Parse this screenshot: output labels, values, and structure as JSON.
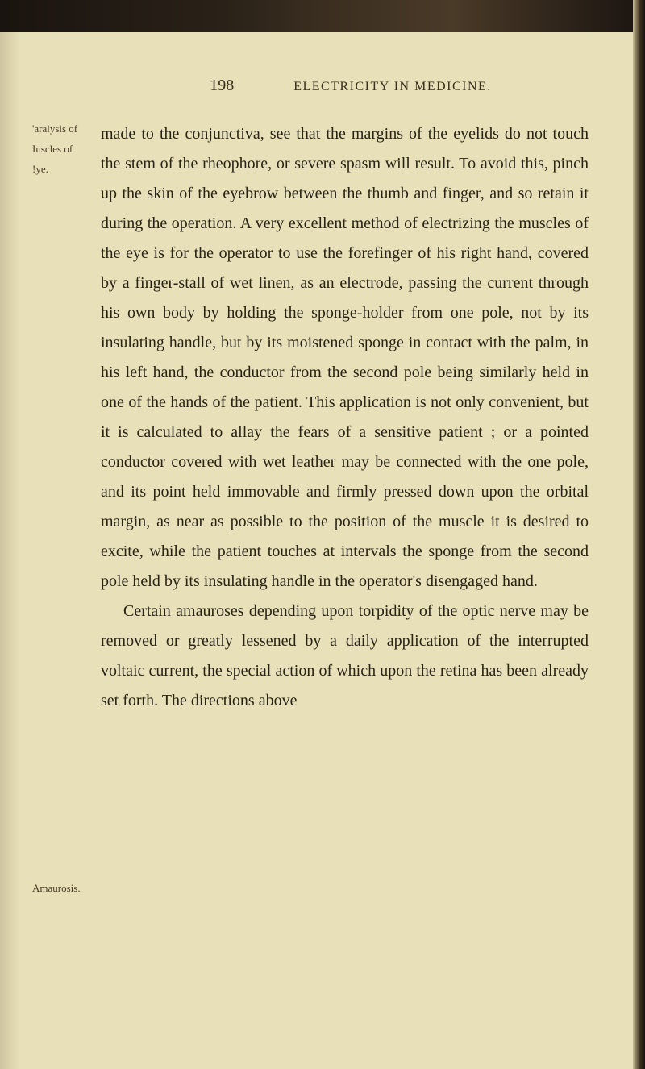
{
  "page": {
    "number": "198",
    "running_head": "ELECTRICITY IN MEDICINE.",
    "background_color": "#e8e0b8",
    "text_color": "#2a2418",
    "edge_color": "#1a1410"
  },
  "margin_notes": {
    "paralysis": "'aralysis of",
    "muscles": "Iuscles of",
    "eye": "!ye.",
    "amaurosis": "Amaurosis."
  },
  "body": {
    "paragraph1": "made to the conjunctiva, see that the margins of the eyelids do not touch the stem of the rheophore, or severe spasm will result. To avoid this, pinch up the skin of the eyebrow between the thumb and finger, and so retain it during the operation. A very excellent method of electrizing the muscles of the eye is for the operator to use the forefinger of his right hand, covered by a finger-stall of wet linen, as an electrode, passing the current through his own body by holding the sponge-holder from one pole, not by its insulating handle, but by its moistened sponge in contact with the palm, in his left hand, the conductor from the second pole being similarly held in one of the hands of the patient. This application is not only convenient, but it is calculated to allay the fears of a sensitive patient ; or a pointed conductor covered with wet leather may be connected with the one pole, and its point held immovable and firmly pressed down upon the orbital margin, as near as possible to the position of the muscle it is desired to excite, while the patient touches at intervals the sponge from the second pole held by its insulating handle in the operator's disengaged hand.",
    "paragraph2": "Certain amauroses depending upon torpidity of the optic nerve may be removed or greatly lessened by a daily application of the interrupted voltaic current, the special action of which upon the retina has been already set forth. The directions above"
  },
  "typography": {
    "body_font_size": 20,
    "body_line_height": 1.85,
    "margin_note_font_size": 13,
    "page_number_font_size": 20,
    "running_head_font_size": 16,
    "font_family": "Georgia, Times New Roman, serif"
  }
}
